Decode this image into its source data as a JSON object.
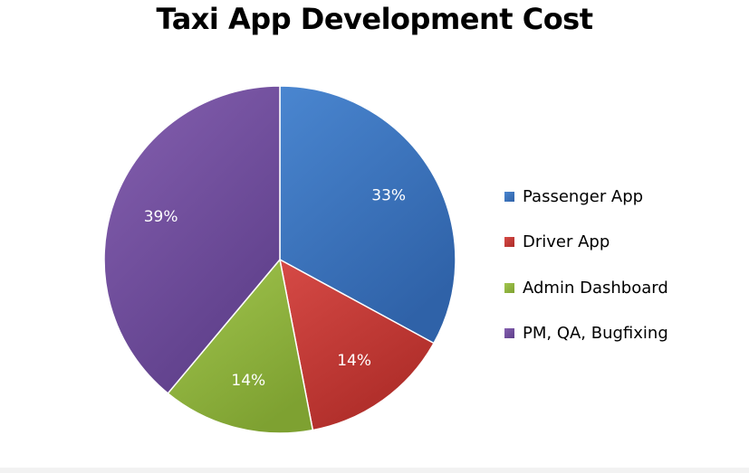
{
  "chart_data": {
    "type": "pie",
    "title": "Taxi App Development Cost",
    "categories": [
      "Passenger App",
      "Driver App",
      "Admin Dashboard",
      "PM, QA, Bugfixing"
    ],
    "values": [
      33,
      14,
      14,
      39
    ],
    "labels": [
      "33%",
      "14%",
      "14%",
      "39%"
    ],
    "colors": [
      "#4a86d0",
      "#d64a46",
      "#a2c64f",
      "#8560b0"
    ],
    "gradient_dark": [
      "#2f62a8",
      "#ad2c28",
      "#7ea131",
      "#5e3f8a"
    ],
    "legend_position": "right",
    "start_angle": "top, clockwise"
  }
}
